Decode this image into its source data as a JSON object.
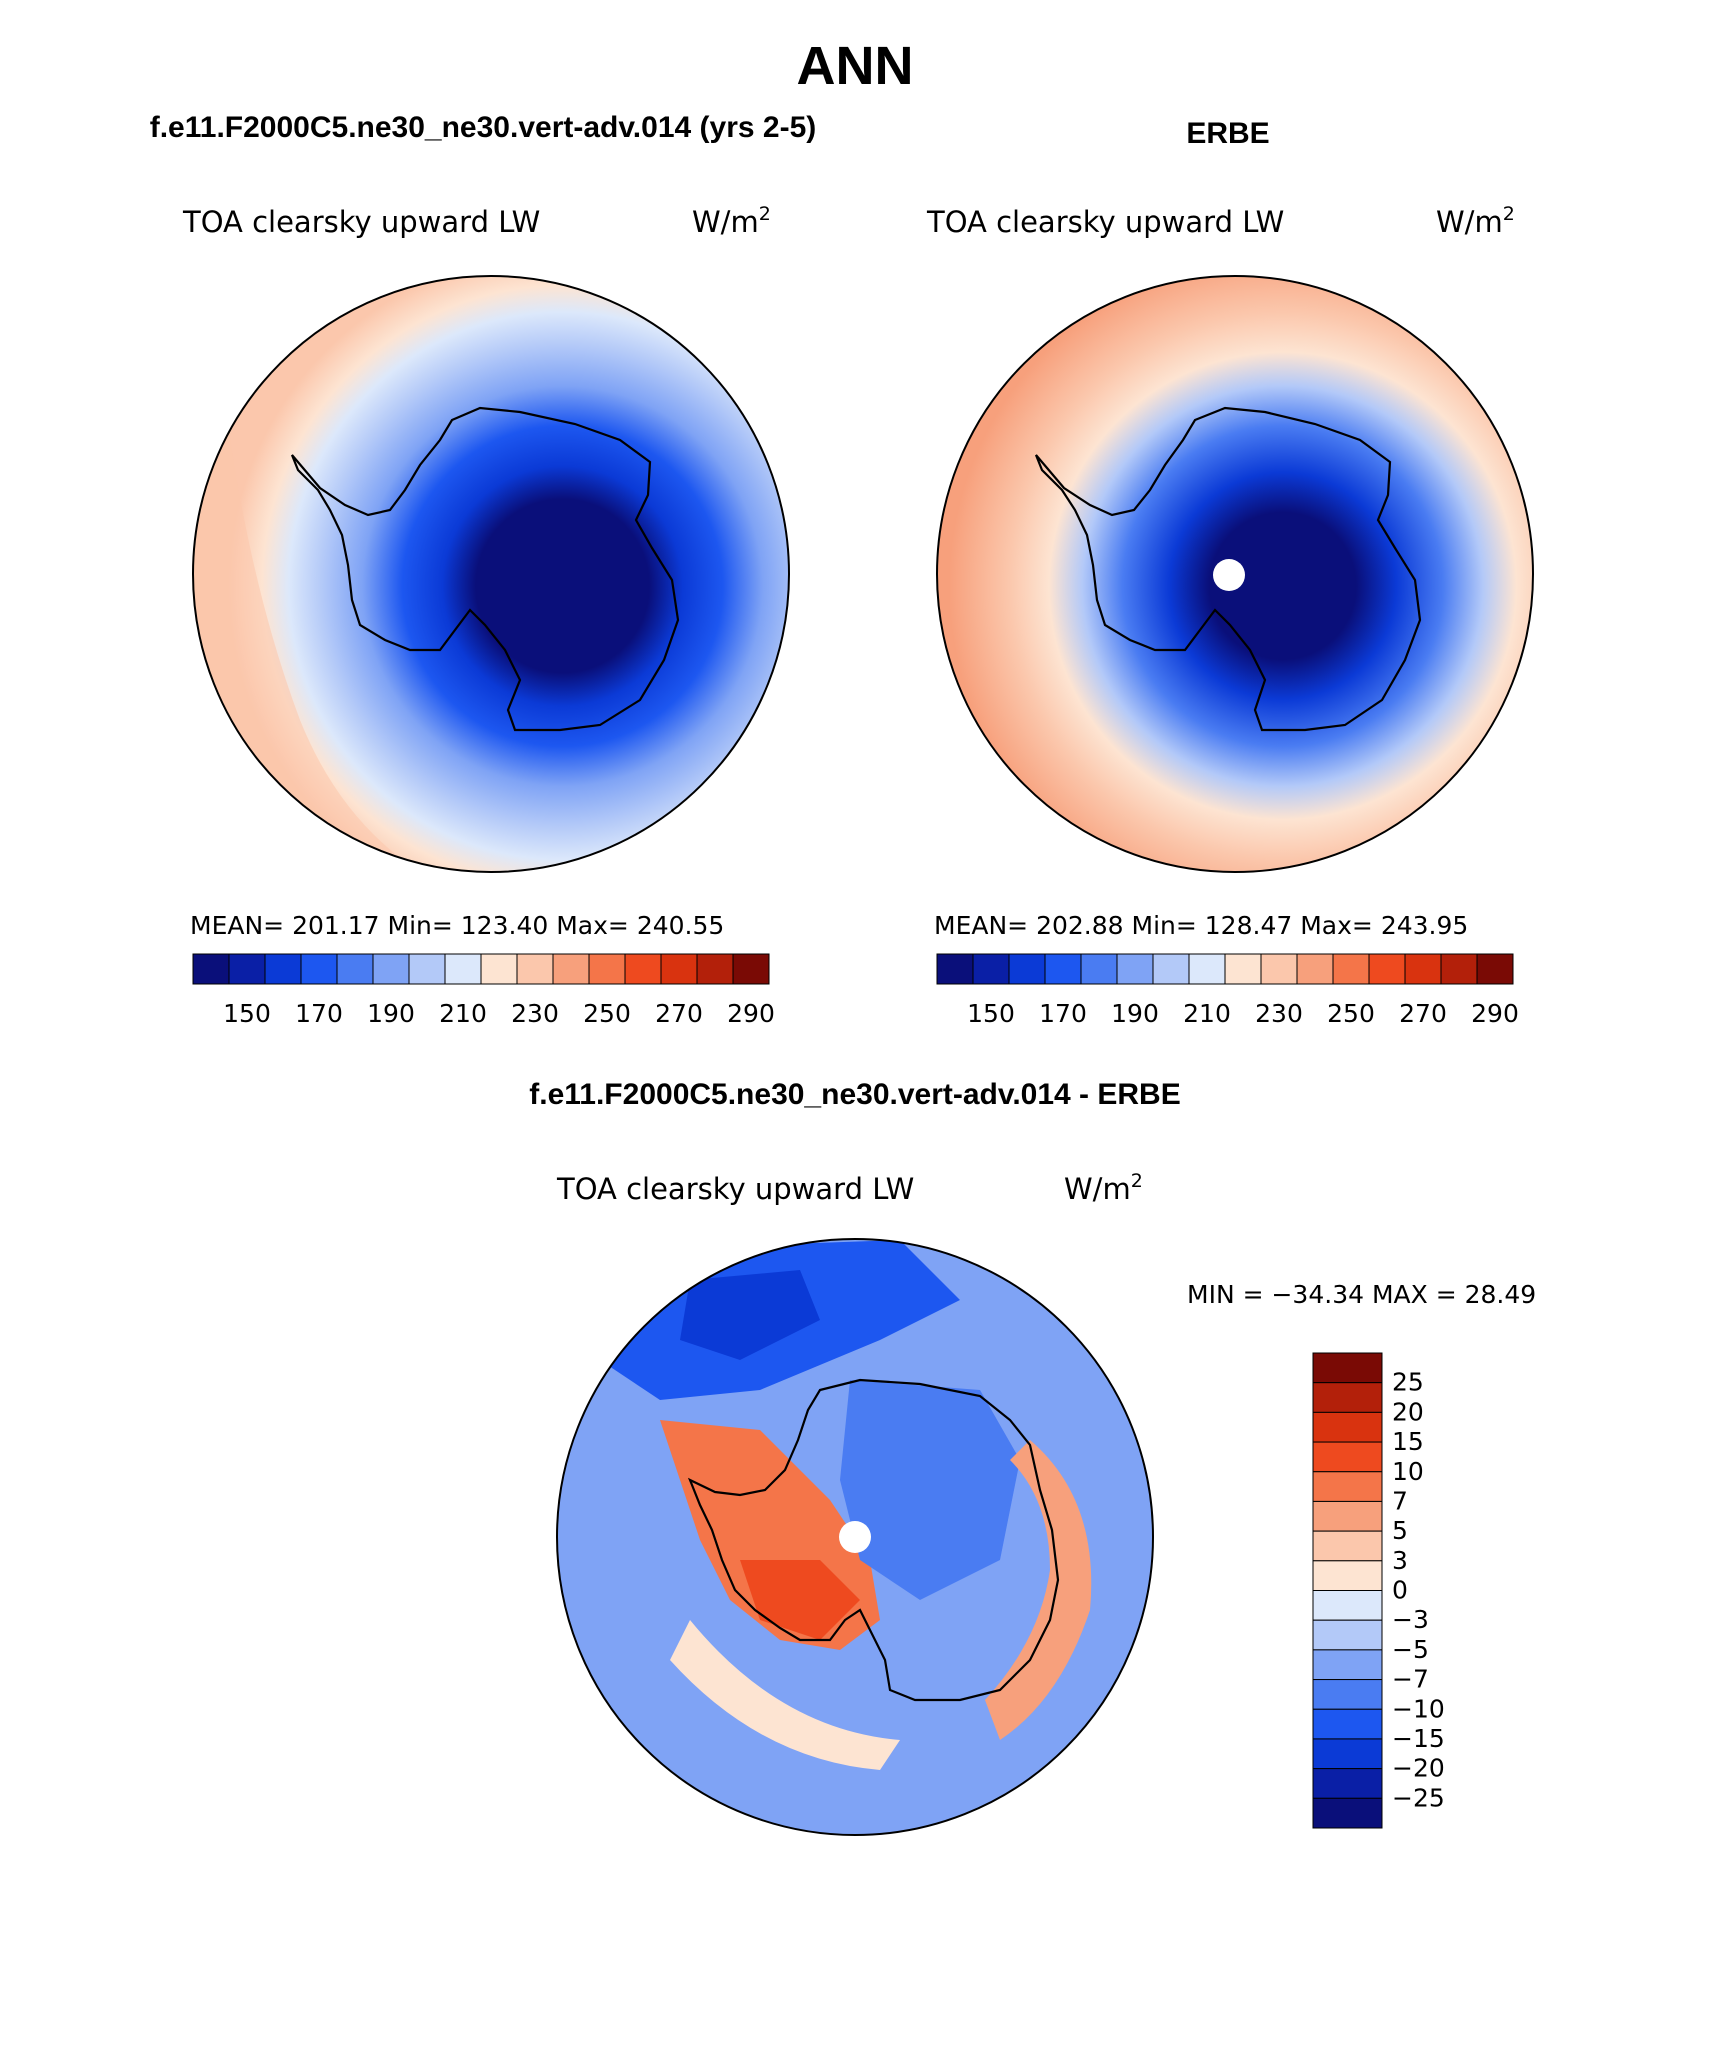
{
  "page_title": "ANN",
  "panels": [
    {
      "header": "f.e11.F2000C5.ne30_ne30.vert-adv.014 (yrs 2-5)",
      "variable": "TOA clearsky upward LW",
      "units": "W/m",
      "units_sup": "2",
      "stats": {
        "mean_label": "MEAN=",
        "mean": "201.17",
        "min_label": "Min=",
        "min": "123.40",
        "max_label": "Max=",
        "max": "240.55"
      }
    },
    {
      "header": "ERBE",
      "variable": "TOA clearsky upward LW",
      "units": "W/m",
      "units_sup": "2",
      "stats": {
        "mean_label": "MEAN=",
        "mean": "202.88",
        "min_label": "Min=",
        "min": "128.47",
        "max_label": "Max=",
        "max": "243.95"
      }
    },
    {
      "header": "f.e11.F2000C5.ne30_ne30.vert-adv.014 - ERBE",
      "variable": "TOA clearsky upward LW",
      "units": "W/m",
      "units_sup": "2",
      "minmax_text": "MIN = −34.34 MAX =   28.49"
    }
  ],
  "abs_colorbar": {
    "colors": [
      "#0a0f7a",
      "#0a1fa6",
      "#0b3ad6",
      "#1d57f0",
      "#4a7cf2",
      "#7fa3f5",
      "#b3c9f8",
      "#dce8fb",
      "#fde4d2",
      "#fbc7ac",
      "#f7a07c",
      "#f47549",
      "#ee4a1f",
      "#d9330f",
      "#b3200a",
      "#7a0a05"
    ],
    "tick_labels": [
      "150",
      "170",
      "190",
      "210",
      "230",
      "250",
      "270",
      "290"
    ]
  },
  "diff_colorbar": {
    "colors_top_to_bottom": [
      "#7a0a05",
      "#b3200a",
      "#d9330f",
      "#ee4a1f",
      "#f47549",
      "#f7a07c",
      "#fbc7ac",
      "#fde4d2",
      "#dce8fb",
      "#b3c9f8",
      "#7fa3f5",
      "#4a7cf2",
      "#1d57f0",
      "#0b3ad6",
      "#0a1fa6",
      "#0a0f7a"
    ],
    "tick_labels": [
      "25",
      "20",
      "15",
      "10",
      "7",
      "5",
      "3",
      "0",
      "−3",
      "−5",
      "−7",
      "−10",
      "−15",
      "−20",
      "−25"
    ]
  }
}
